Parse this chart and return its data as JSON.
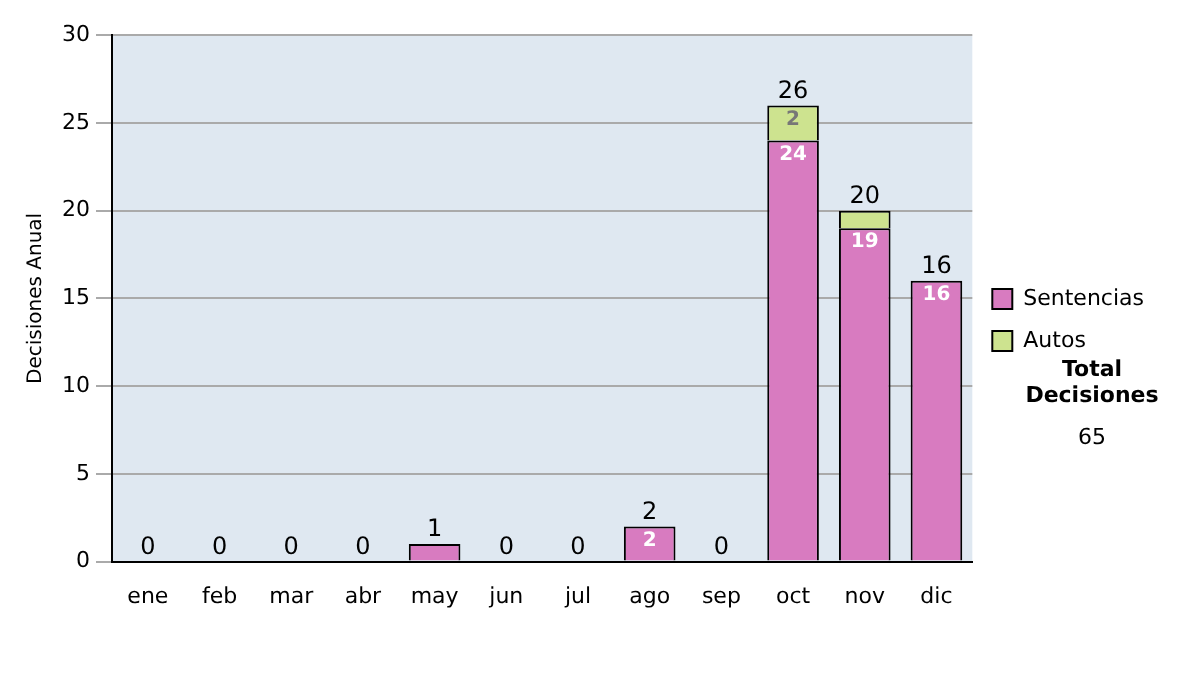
{
  "chart_data": {
    "type": "bar",
    "ylabel": "Decisiones Anual",
    "categories": [
      "ene",
      "feb",
      "mar",
      "abr",
      "may",
      "jun",
      "jul",
      "ago",
      "sep",
      "oct",
      "nov",
      "dic"
    ],
    "series": [
      {
        "name": "Sentencias",
        "color": "#d87bc0",
        "values": [
          0,
          0,
          0,
          0,
          1,
          0,
          0,
          2,
          0,
          24,
          19,
          16
        ],
        "value_labels": [
          null,
          null,
          null,
          null,
          null,
          null,
          null,
          "2",
          null,
          "24",
          "19",
          "16"
        ]
      },
      {
        "name": "Autos",
        "color": "#cde38f",
        "values": [
          0,
          0,
          0,
          0,
          0,
          0,
          0,
          0,
          0,
          2,
          1,
          0
        ],
        "value_labels": [
          null,
          null,
          null,
          null,
          null,
          null,
          null,
          null,
          null,
          "2",
          null,
          null
        ]
      }
    ],
    "stacked": true,
    "totals": [
      "0",
      "0",
      "0",
      "0",
      "1",
      "0",
      "0",
      "2",
      "0",
      "26",
      "20",
      "16"
    ],
    "ylim": [
      0,
      30
    ],
    "yticks": [
      0,
      5,
      10,
      15,
      20,
      25,
      30
    ],
    "grid": "y",
    "legend": "right",
    "annotations": [
      "Total Decisiones",
      "65"
    ]
  }
}
